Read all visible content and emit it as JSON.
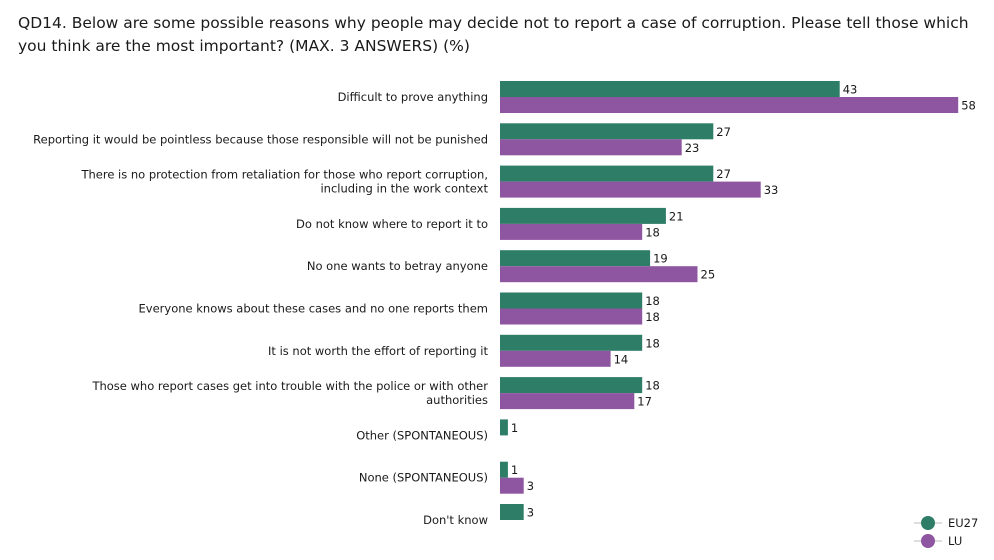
{
  "title": "QD14. Below are some possible reasons why people may decide not to report a case of corruption. Please tell those which you think are the most important? (MAX. 3 ANSWERS) (%)",
  "chart_data": {
    "type": "bar",
    "orientation": "horizontal",
    "categories": [
      [
        "Difficult to prove anything"
      ],
      [
        "Reporting it would be pointless because those responsible will not be punished"
      ],
      [
        "There is no protection from retaliation for those who report corruption,",
        "including in the work context"
      ],
      [
        "Do not know where to report it to"
      ],
      [
        "No one wants to betray anyone"
      ],
      [
        "Everyone knows about these cases and no one reports them"
      ],
      [
        "It is not worth the effort of reporting it"
      ],
      [
        "Those who report cases get into trouble with the police or with other",
        "authorities"
      ],
      [
        "Other (SPONTANEOUS)"
      ],
      [
        "None (SPONTANEOUS)"
      ],
      [
        "Don't know"
      ]
    ],
    "series": [
      {
        "name": "EU27",
        "color": "#2e7d67",
        "values": [
          43,
          27,
          27,
          21,
          19,
          18,
          18,
          18,
          1,
          1,
          3
        ]
      },
      {
        "name": "LU",
        "color": "#8e55a1",
        "values": [
          58,
          23,
          33,
          18,
          25,
          18,
          14,
          17,
          null,
          3,
          null
        ]
      }
    ],
    "xlim": [
      0,
      58
    ],
    "grid": false,
    "legend_position": "bottom-right"
  }
}
